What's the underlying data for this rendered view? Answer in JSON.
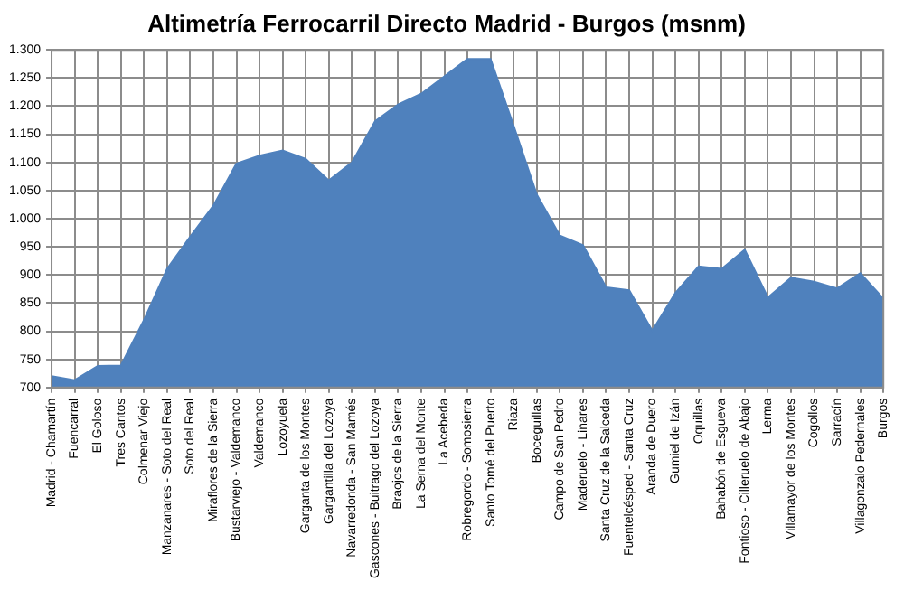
{
  "chart_data": {
    "type": "area",
    "title": "Altimetría Ferrocarril Directo Madrid - Burgos (msnm)",
    "categories": [
      "Madrid - Chamartín",
      "Fuencarral",
      "El Goloso",
      "Tres Cantos",
      "Colmenar Viejo",
      "Manzanares - Soto del Real",
      "Soto del Real",
      "Miraflores de la Sierra",
      "Bustarviejo - Valdemanco",
      "Valdemanco",
      "Lozoyuela",
      "Garganta de los Montes",
      "Gargantilla del Lozoya",
      "Navarredonda - San Mamés",
      "Gascones - Buitrago del Lozoya",
      "Braojos de la Sierra",
      "La Serna del Monte",
      "La Acebeda",
      "Robregordo - Somosierra",
      "Santo Tomé del Puerto",
      "Riaza",
      "Boceguillas",
      "Campo de San Pedro",
      "Maderuelo - Linares",
      "Santa Cruz de la Salceda",
      "Fuentelcésped - Santa Cruz",
      "Aranda de Duero",
      "Gumiel de Izán",
      "Oquillas",
      "Bahabón de Esgueva",
      "Fontioso - Cilleruelo de Abajo",
      "Lerma",
      "Villamayor de los Montes",
      "Cogollos",
      "Sarracín",
      "Villagonzalo Pedernales",
      "Burgos"
    ],
    "values": [
      720,
      713,
      738,
      739,
      820,
      911,
      968,
      1023,
      1098,
      1112,
      1121,
      1106,
      1068,
      1100,
      1173,
      1203,
      1222,
      1253,
      1284,
      1284,
      1165,
      1043,
      970,
      953,
      878,
      873,
      801,
      868,
      915,
      911,
      945,
      860,
      895,
      888,
      876,
      903,
      858
    ],
    "color": "#4f81bd",
    "ylim": [
      700,
      1300
    ],
    "yticks": [
      700,
      750,
      800,
      850,
      900,
      950,
      {
        "value": 1000,
        "label": "1.000"
      },
      {
        "value": 1050,
        "label": "1.050"
      },
      {
        "value": 1100,
        "label": "1.100"
      },
      {
        "value": 1150,
        "label": "1.150"
      },
      {
        "value": 1200,
        "label": "1.200"
      },
      {
        "value": 1250,
        "label": "1.250"
      },
      {
        "value": 1300,
        "label": "1.300"
      }
    ],
    "grid": true,
    "legend": false
  }
}
